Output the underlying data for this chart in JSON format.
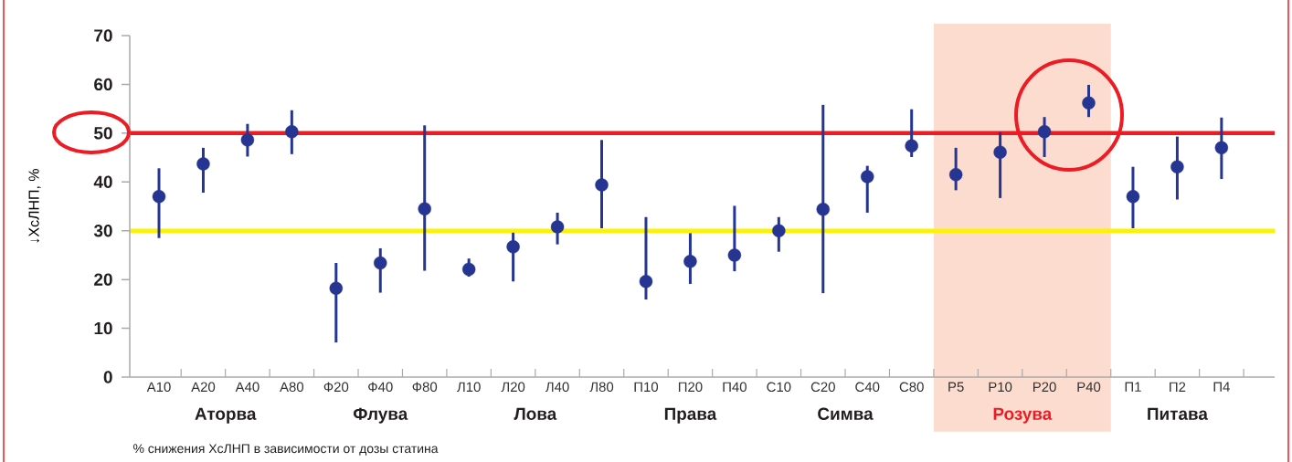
{
  "chart_data": {
    "type": "scatter",
    "ylabel": "↓ХсЛНП, %",
    "categories": [
      "А10",
      "А20",
      "А40",
      "А80",
      "Ф20",
      "Ф40",
      "Ф80",
      "Л10",
      "Л20",
      "Л40",
      "Л80",
      "П10",
      "П20",
      "П40",
      "С10",
      "С20",
      "С40",
      "С80",
      "Р5",
      "Р10",
      "Р20",
      "Р40",
      "П1",
      "П2",
      "П4"
    ],
    "values": [
      37.0,
      43.7,
      48.6,
      50.3,
      18.2,
      23.4,
      34.5,
      22.1,
      26.7,
      30.8,
      39.4,
      19.6,
      23.7,
      25.0,
      30.0,
      34.4,
      41.1,
      47.4,
      41.5,
      46.1,
      50.3,
      56.2,
      37.0,
      43.1,
      47.0
    ],
    "errors": [
      [
        28.5,
        42.8
      ],
      [
        37.8,
        47.0
      ],
      [
        45.2,
        51.9
      ],
      [
        45.7,
        54.7
      ],
      [
        7.1,
        23.4
      ],
      [
        17.3,
        26.4
      ],
      [
        21.8,
        51.6
      ],
      [
        20.6,
        24.3
      ],
      [
        19.6,
        29.6
      ],
      [
        27.2,
        33.7
      ],
      [
        30.5,
        48.6
      ],
      [
        15.9,
        32.8
      ],
      [
        19.1,
        29.5
      ],
      [
        21.7,
        35.1
      ],
      [
        25.7,
        32.8
      ],
      [
        17.2,
        55.8
      ],
      [
        33.7,
        43.3
      ],
      [
        45.1,
        54.9
      ],
      [
        38.3,
        47.0
      ],
      [
        36.7,
        50.2
      ],
      [
        45.1,
        53.3
      ],
      [
        53.3,
        59.9
      ],
      [
        30.5,
        43.1
      ],
      [
        36.4,
        49.3
      ],
      [
        40.6,
        53.2
      ]
    ],
    "color": "#253591",
    "ylim": [
      0,
      70
    ],
    "yticks": [
      0,
      10,
      20,
      30,
      40,
      50,
      60,
      70
    ],
    "ref_lines": [
      {
        "axis": "y",
        "value": 50,
        "color": "#ed1c24"
      },
      {
        "axis": "y",
        "value": 30,
        "color": "#fff200"
      }
    ],
    "bands": [
      {
        "axis": "x",
        "from": "Р5",
        "to": "Р40",
        "color": "#fbdccf"
      }
    ],
    "annotations": [
      "Аторва",
      "Флува",
      "Лова",
      "Права",
      "Симва",
      "Розува",
      "Питава",
      "% снижения ХсЛНП в зависимости от дозы статина"
    ],
    "grid": false
  }
}
